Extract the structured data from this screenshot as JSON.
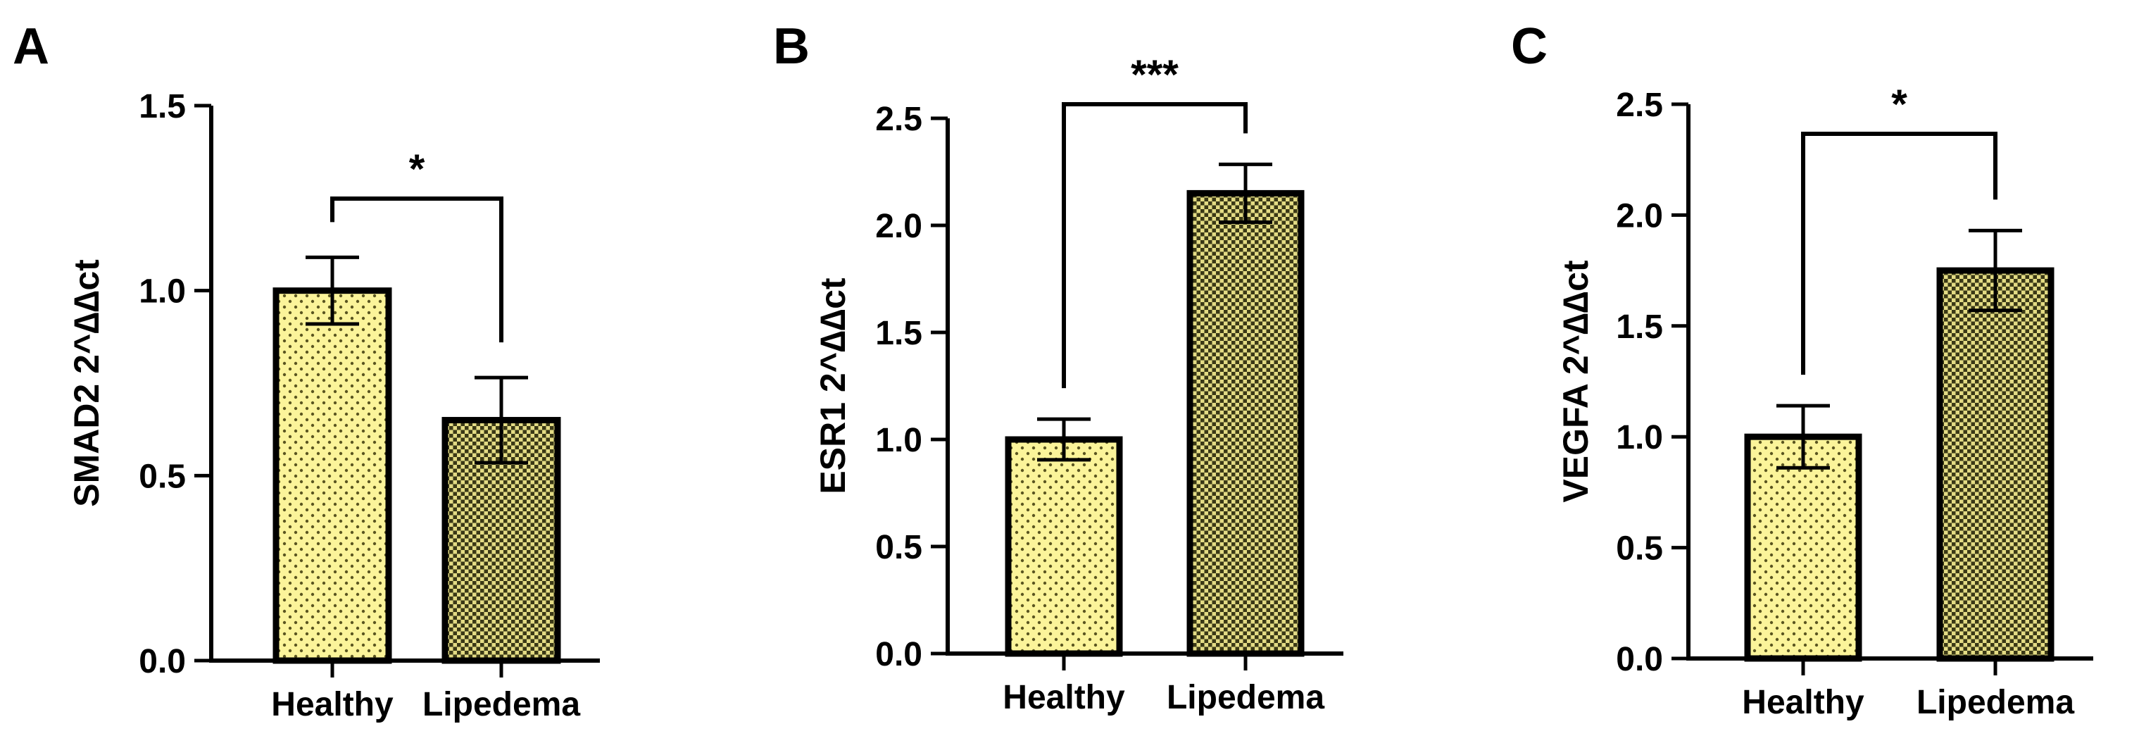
{
  "colors": {
    "healthy_fill": "#fbf49a",
    "lipedema_fill": "#d9d27a",
    "dot": "#5a5520",
    "ink": "#000000"
  },
  "chart_data": [
    {
      "panel": "A",
      "type": "bar",
      "ylabel": "SMAD2 2^∆∆ct",
      "ylim": [
        0,
        1.5
      ],
      "yticks": [
        0.0,
        0.5,
        1.0,
        1.5
      ],
      "ytick_labels": [
        "0.0",
        "0.5",
        "1.0",
        "1.5"
      ],
      "categories": [
        "Healthy",
        "Lipedema"
      ],
      "values": [
        1.0,
        0.65
      ],
      "errors": [
        0.09,
        0.115
      ],
      "significance": "*"
    },
    {
      "panel": "B",
      "type": "bar",
      "ylabel": "ESR1 2^∆∆ct",
      "ylim": [
        0,
        2.5
      ],
      "yticks": [
        0.0,
        0.5,
        1.0,
        1.5,
        2.0,
        2.5
      ],
      "ytick_labels": [
        "0.0",
        "0.5",
        "1.0",
        "1.5",
        "2.0",
        "2.5"
      ],
      "categories": [
        "Healthy",
        "Lipedema"
      ],
      "values": [
        1.0,
        2.15
      ],
      "errors": [
        0.095,
        0.135
      ],
      "significance": "***"
    },
    {
      "panel": "C",
      "type": "bar",
      "ylabel": "VEGFA 2^∆∆ct",
      "ylim": [
        0,
        2.5
      ],
      "yticks": [
        0.0,
        0.5,
        1.0,
        1.5,
        2.0,
        2.5
      ],
      "ytick_labels": [
        "0.0",
        "0.5",
        "1.0",
        "1.5",
        "2.0",
        "2.5"
      ],
      "categories": [
        "Healthy",
        "Lipedema"
      ],
      "values": [
        1.0,
        1.75
      ],
      "errors": [
        0.14,
        0.18
      ],
      "significance": "*"
    }
  ]
}
